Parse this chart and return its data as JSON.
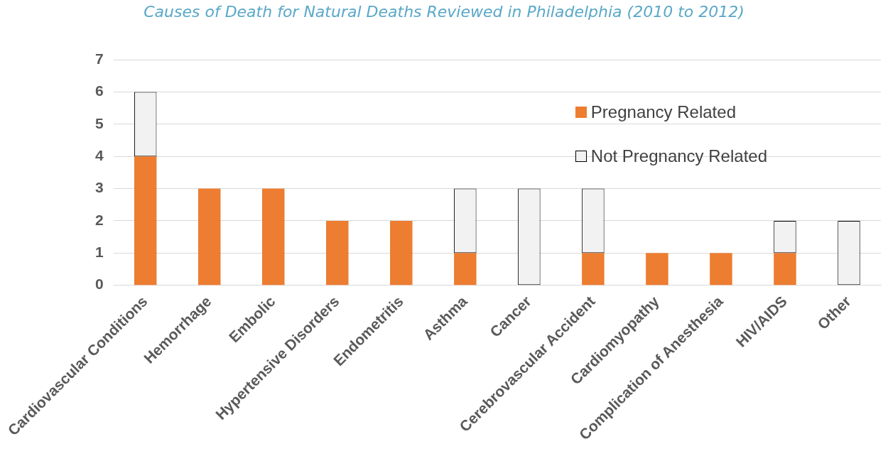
{
  "chart_data": {
    "type": "bar",
    "title": "Causes of Death for Natural Deaths Reviewed in Philadelphia (2010 to 2012)",
    "categories": [
      "Cardiovascular Conditions",
      "Hemorrhage",
      "Embolic",
      "Hypertensive Disorders",
      "Endometritis",
      "Asthma",
      "Cancer",
      "Cerebrovascular Accident",
      "Cardiomyopathy",
      "Complication of Anesthesia",
      "HIV/AIDS",
      "Other"
    ],
    "series": [
      {
        "name": "Pregnancy Related",
        "color": "#ed7d31",
        "values": [
          4,
          3,
          3,
          2,
          2,
          1,
          0,
          1,
          1,
          1,
          1,
          0
        ]
      },
      {
        "name": "Not Pregnancy Related",
        "color": "#f2f2f2",
        "values": [
          2,
          0,
          0,
          0,
          0,
          2,
          3,
          2,
          0,
          0,
          1,
          2
        ]
      }
    ],
    "stacked": true,
    "ylim": [
      0,
      7
    ],
    "yticks": [
      0,
      1,
      2,
      3,
      4,
      5,
      6,
      7
    ],
    "grid": "y",
    "legend": "top right"
  }
}
